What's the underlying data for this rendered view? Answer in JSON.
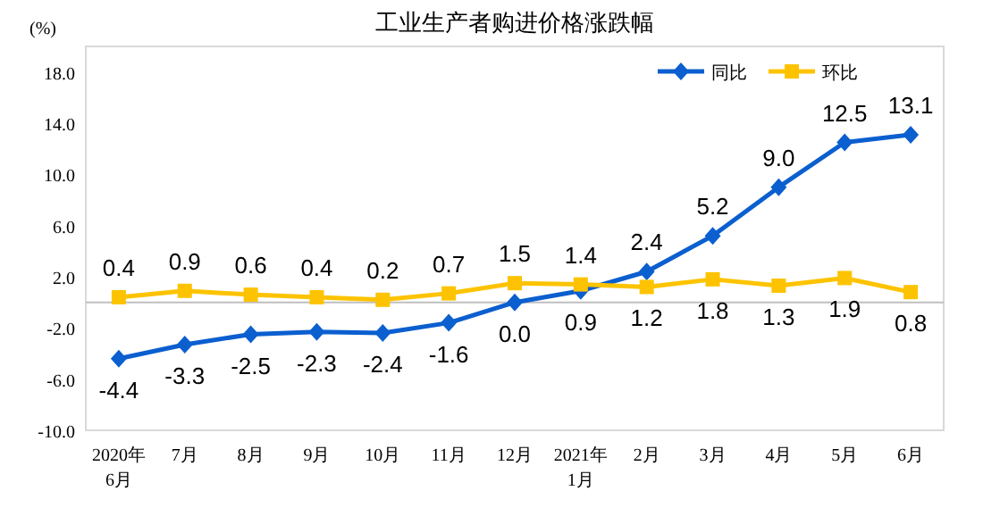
{
  "chart_data": {
    "type": "line",
    "title": "工业生产者购进价格涨跌幅",
    "ylabel": "(%)",
    "categories": [
      "2020年\n6月",
      "7月",
      "8月",
      "9月",
      "10月",
      "11月",
      "12月",
      "2021年\n1月",
      "2月",
      "3月",
      "4月",
      "5月",
      "6月"
    ],
    "series": [
      {
        "name": "同比",
        "color": "#0b5fcf",
        "marker": "diamond",
        "values": [
          -4.4,
          -3.3,
          -2.5,
          -2.3,
          -2.4,
          -1.6,
          0.0,
          0.9,
          2.4,
          5.2,
          9.0,
          12.5,
          13.1
        ],
        "value_labels": [
          "-4.4",
          "-3.3",
          "-2.5",
          "-2.3",
          "-2.4",
          "-1.6",
          "0.0",
          "0.9",
          "2.4",
          "5.2",
          "9.0",
          "12.5",
          "13.1"
        ]
      },
      {
        "name": "环比",
        "color": "#fdc300",
        "marker": "square",
        "values": [
          0.4,
          0.9,
          0.6,
          0.4,
          0.2,
          0.7,
          1.5,
          1.4,
          1.2,
          1.8,
          1.3,
          1.9,
          0.8
        ],
        "value_labels": [
          "0.4",
          "0.9",
          "0.6",
          "0.4",
          "0.2",
          "0.7",
          "1.5",
          "1.4",
          "1.2",
          "1.8",
          "1.3",
          "1.9",
          "0.8"
        ]
      }
    ],
    "ylim": [
      -10,
      20
    ],
    "yticks": [
      {
        "value": -10,
        "label": "-10.0"
      },
      {
        "value": -6,
        "label": "-6.0"
      },
      {
        "value": -2,
        "label": "-2.0"
      },
      {
        "value": 2,
        "label": "2.0"
      },
      {
        "value": 6,
        "label": "6.0"
      },
      {
        "value": 10,
        "label": "10.0"
      },
      {
        "value": 14,
        "label": "14.0"
      },
      {
        "value": 18,
        "label": "18.0"
      }
    ],
    "legend": "top right",
    "grid": false,
    "line_style": "solid"
  }
}
